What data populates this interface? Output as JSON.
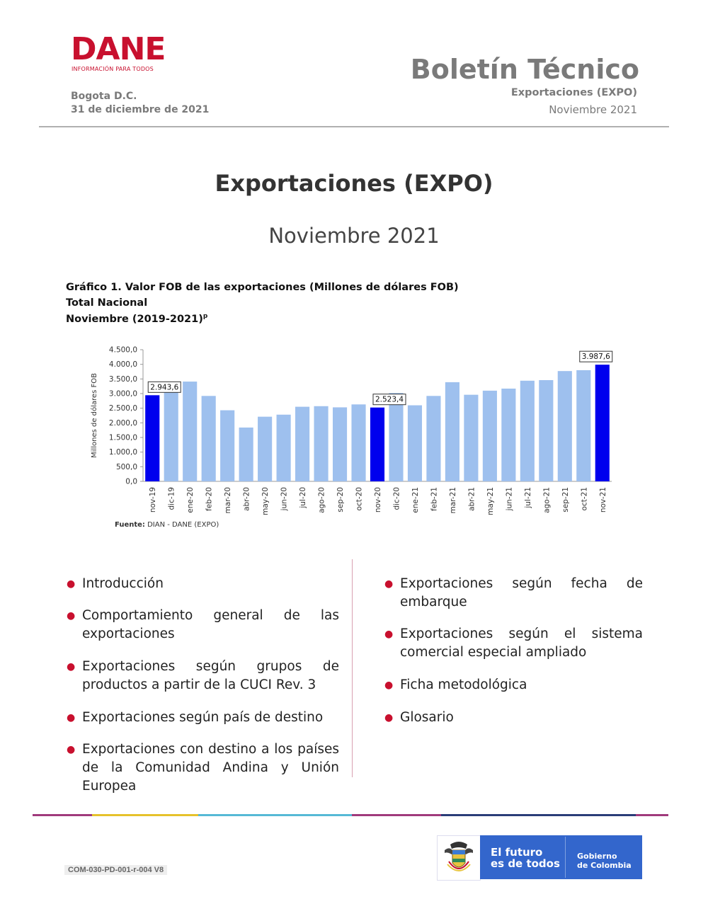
{
  "header": {
    "logo_text": "DANE",
    "logo_subtitle": "INFORMACIÓN PARA TODOS",
    "city": "Bogota D.C.",
    "date": "31 de diciembre de 2021",
    "bulletin_title": "Boletín Técnico",
    "bulletin_subject": "Exportaciones (EXPO)",
    "bulletin_period": "Noviembre 2021"
  },
  "title": {
    "main": "Exportaciones (EXPO)",
    "period": "Noviembre 2021"
  },
  "chart_caption": {
    "line1": "Gráfico 1. Valor FOB de las exportaciones (Millones de dólares FOB)",
    "line2": "Total Nacional",
    "line3": "Noviembre (2019-2021)",
    "line3_sup": "p"
  },
  "chart_data": {
    "type": "bar",
    "ylabel": "Millones de dólares FOB",
    "ylim": [
      0,
      4500
    ],
    "yticks": [
      "0,0",
      "500,0",
      "1.000,0",
      "1.500,0",
      "2.000,0",
      "2.500,0",
      "3.000,0",
      "3.500,0",
      "4.000,0",
      "4.500,0"
    ],
    "categories": [
      "nov-19",
      "dic-19",
      "ene-20",
      "feb-20",
      "mar-20",
      "abr-20",
      "may-20",
      "jun-20",
      "jul-20",
      "ago-20",
      "sep-20",
      "oct-20",
      "nov-20",
      "dic-20",
      "ene-21",
      "feb-21",
      "mar-21",
      "abr-21",
      "may-21",
      "jun-21",
      "jul-21",
      "ago-21",
      "sep-21",
      "oct-21",
      "nov-21"
    ],
    "values": [
      2943.6,
      3100,
      3410,
      2920,
      2430,
      1840,
      2210,
      2280,
      2550,
      2570,
      2530,
      2630,
      2523.4,
      3020,
      2600,
      2920,
      3390,
      2960,
      3100,
      3170,
      3440,
      3460,
      3770,
      3800,
      3987.6
    ],
    "highlight": [
      "nov-19",
      "nov-20",
      "nov-21"
    ],
    "data_labels": [
      {
        "category": "nov-19",
        "text": "2.943,6"
      },
      {
        "category": "nov-20",
        "text": "2.523,4"
      },
      {
        "category": "nov-21",
        "text": "3.987,6"
      }
    ],
    "colors": {
      "bar": "#9ec0ee",
      "highlight": "#0000ee"
    },
    "grid": false
  },
  "source": {
    "label": "Fuente:",
    "text": " DIAN - DANE (EXPO)"
  },
  "contents": {
    "left": [
      "Introducción",
      "Comportamiento general de las exportaciones",
      "Exportaciones según grupos de productos a partir de la CUCI Rev. 3",
      "Exportaciones según país de destino",
      "Exportaciones con destino a los países de la Comunidad Andina y Unión Europea"
    ],
    "right": [
      "Exportaciones según fecha de embarque",
      "Exportaciones según el sistema comercial especial ampliado",
      "Ficha metodológica",
      "Glosario"
    ],
    "bullet_color": "#c8102e"
  },
  "footer": {
    "code": "COM-030-PD-001-r-004 V8",
    "slogan_line1": "El futuro",
    "slogan_line2": "es de todos",
    "gov_line1": "Gobierno",
    "gov_line2": "de Colombia",
    "line_colors": [
      "#a03a7c",
      "#e6c22b",
      "#56b9d6",
      "#a03a7c",
      "#2a3d78",
      "#a03a7c"
    ]
  }
}
